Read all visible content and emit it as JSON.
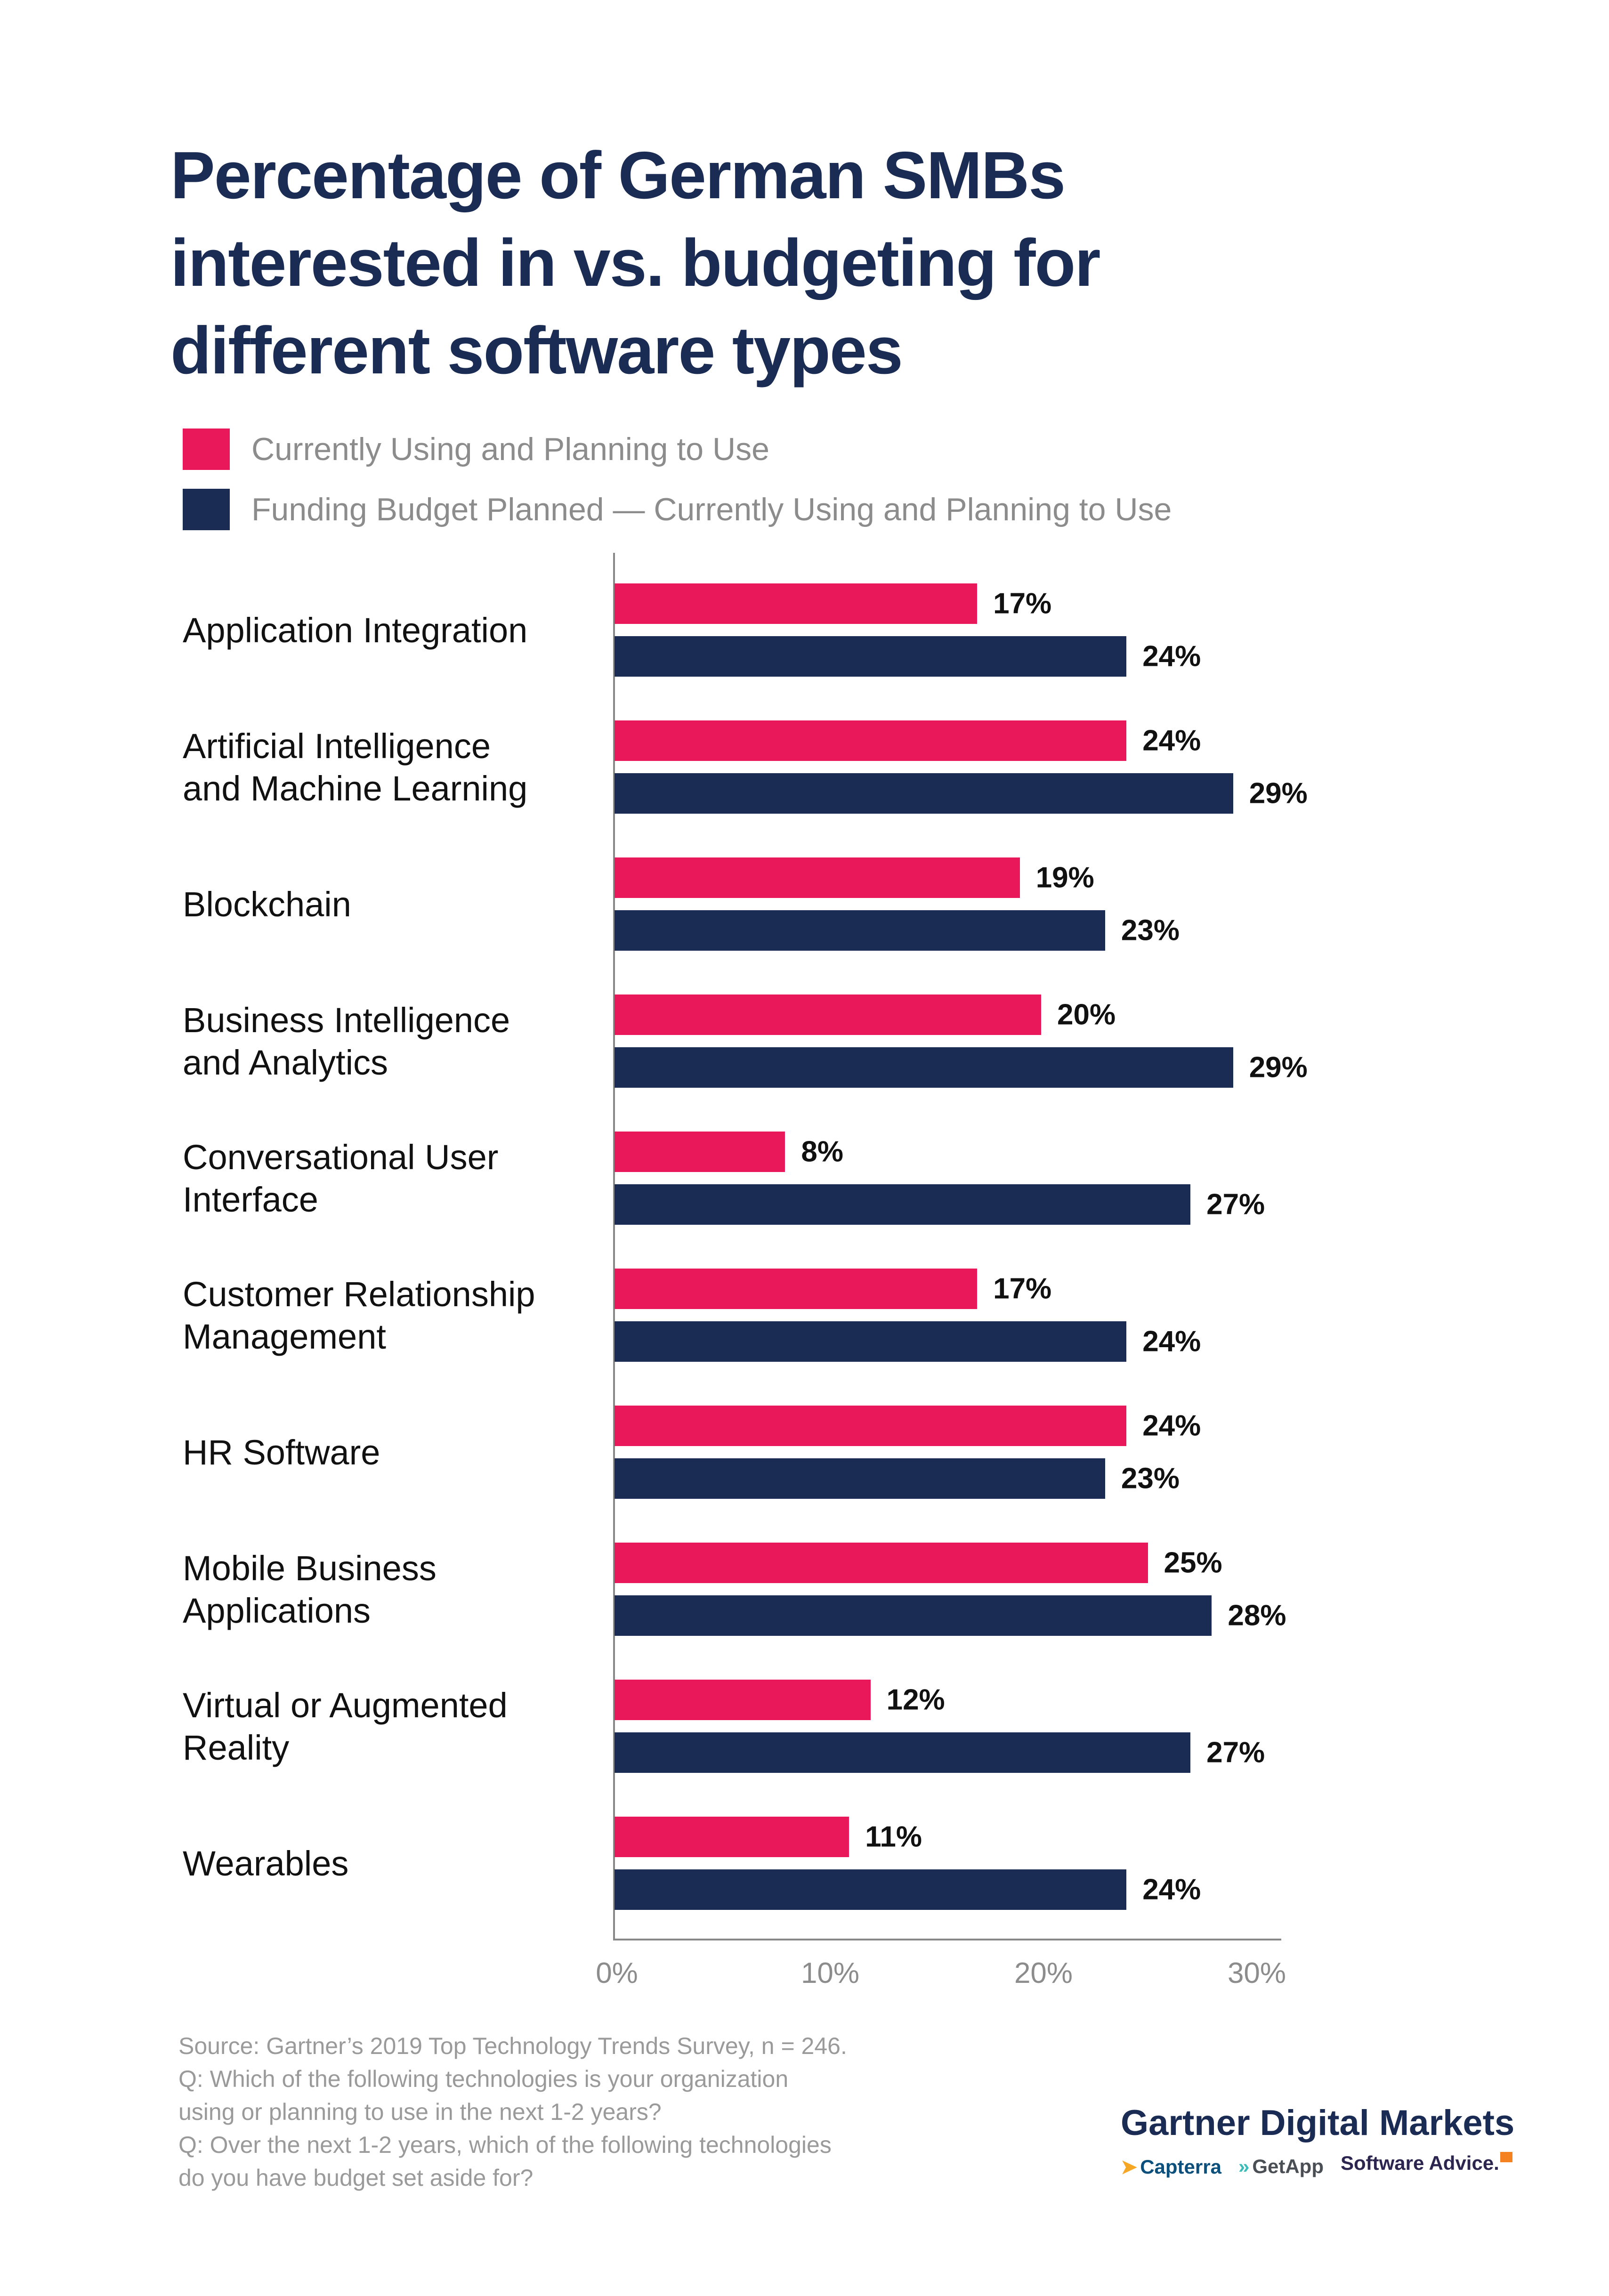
{
  "chart_data": {
    "type": "bar",
    "orientation": "horizontal",
    "title": "Percentage of German SMBs interested in vs. budgeting for different software types",
    "title_lines": [
      "Percentage of German SMBs",
      "interested in vs. budgeting for",
      "different software types"
    ],
    "categories": [
      [
        "Application Integration"
      ],
      [
        "Artificial Intelligence",
        "and Machine Learning"
      ],
      [
        "Blockchain"
      ],
      [
        "Business Intelligence",
        "and Analytics"
      ],
      [
        "Conversational User",
        "Interface"
      ],
      [
        "Customer Relationship",
        "Management"
      ],
      [
        "HR Software"
      ],
      [
        "Mobile Business",
        "Applications"
      ],
      [
        "Virtual or Augmented",
        "Reality"
      ],
      [
        "Wearables"
      ]
    ],
    "series": [
      {
        "name": "Currently Using and Planning to Use",
        "color": "#e8185b",
        "values": [
          17,
          24,
          19,
          20,
          8,
          17,
          24,
          25,
          12,
          11
        ],
        "labels": [
          "17%",
          "24%",
          "19%",
          "20%",
          "8%",
          "17%",
          "24%",
          "25%",
          "12%",
          "11%"
        ]
      },
      {
        "name": "Funding Budget Planned — Currently Using and Planning to Use",
        "color": "#1a2b54",
        "values": [
          24,
          29,
          23,
          29,
          27,
          24,
          23,
          28,
          27,
          24
        ],
        "labels": [
          "24%",
          "29%",
          "23%",
          "29%",
          "27%",
          "24%",
          "23%",
          "28%",
          "27%",
          "24%"
        ]
      }
    ],
    "xlim": [
      0,
      30
    ],
    "x_ticks": [
      "0%",
      "10%",
      "20%",
      "30%"
    ],
    "grid": false,
    "legend_position": "top-left"
  },
  "footer": {
    "lines": [
      "Source: Gartner’s 2019 Top Technology Trends Survey, n = 246.",
      "Q: Which of the following technologies is your organization",
      "using or planning to use in the next 1-2 years?",
      "Q: Over the next 1-2 years, which of the following technologies",
      "do you have budget set aside for?"
    ]
  },
  "logo": {
    "main": "Gartner Digital Markets",
    "subs": [
      "Capterra",
      "GetApp",
      "Software Advice."
    ]
  }
}
